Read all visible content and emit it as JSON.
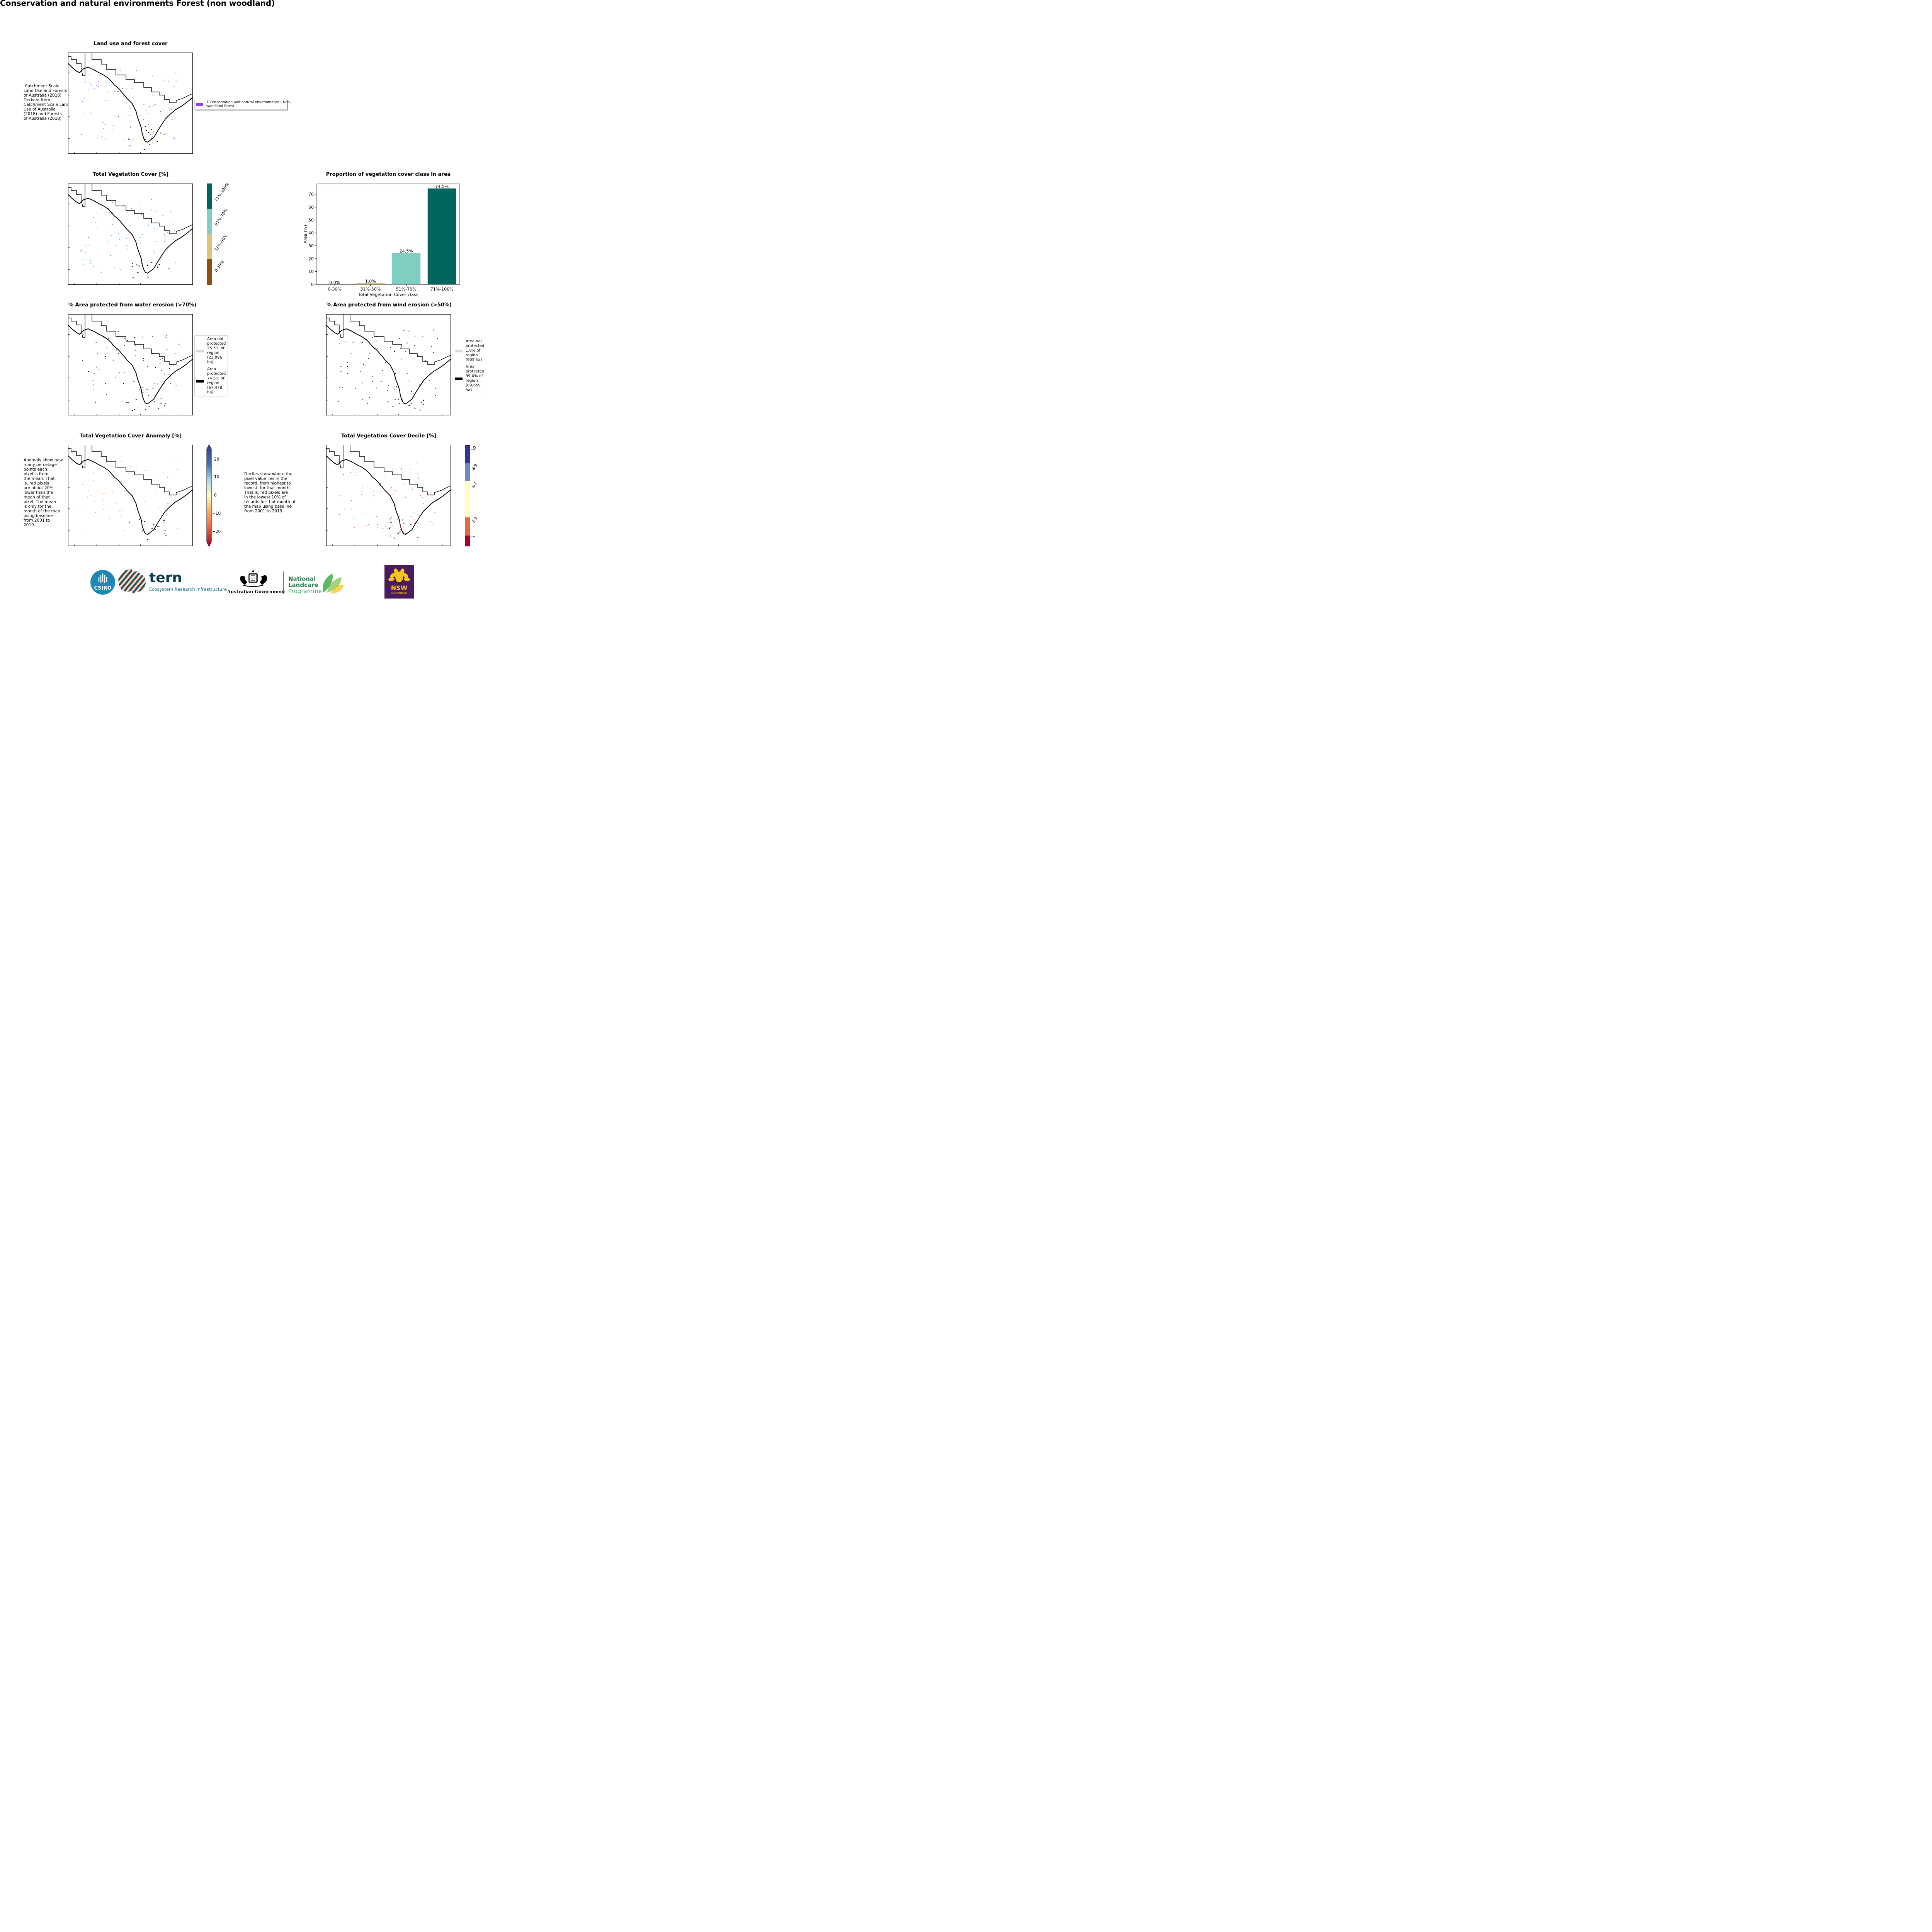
{
  "page": {
    "title": "Conservation and natural environments Forest (non woodland)"
  },
  "panels": {
    "landuse": {
      "title": "Land use and forest cover",
      "note": " Catchment Scale\nLand Use and Forests\nof Australia (2018)\nDerived from\nCatchment Scale Land\nUse of Australia\n(2018) and Forests\nof Australia (2018)",
      "legend_label": "1 Conservation and natural environments – Non-\nwoodland forest",
      "legend_color": "#9b3cf5"
    },
    "tvc": {
      "title": "Total Vegetation Cover [%]",
      "classes": [
        {
          "label": "71%-100%",
          "color": "#01665e"
        },
        {
          "label": "51%-70%",
          "color": "#80cdc1"
        },
        {
          "label": "31%-50%",
          "color": "#dfc27d"
        },
        {
          "label": "0-30%",
          "color": "#8c510a"
        }
      ]
    },
    "water": {
      "title": "% Area protected from water erosion (>70%)",
      "legend": [
        {
          "label": "Area not\nprotected\n25.5% of\nregion\n(23,096\nha)",
          "color": "#d9d9d9"
        },
        {
          "label": "Area\nprotected\n74.5% of\nregion\n(67,478\nha)",
          "color": "#000000"
        }
      ]
    },
    "wind": {
      "title": "% Area protected from wind erosion (>50%)",
      "legend": [
        {
          "label": "Area not\nprotected\n1.0% of\nregion\n(905 ha)",
          "color": "#d9d9d9"
        },
        {
          "label": "Area\nprotected\n99.0% of\nregion\n(89,669\nha)",
          "color": "#000000"
        }
      ]
    },
    "anomaly": {
      "title": "Total Vegetation Cover Anomaly [%]",
      "note": "Anomaly show how\nmany percetage\npoints each\npixel is from\nthe mean. That\nis, red pixels\nare about 20%\nlower than the\nmean of that\npixel. The mean\nis only for the\nmonth of the map\nusing baseline\nfrom 2001 to\n2019.",
      "ticks": [
        "20",
        "10",
        "0",
        "−10",
        "−20"
      ]
    },
    "decile": {
      "title": "Total Vegetation Cover Decile [%]",
      "note": "Deciles show where the\npixel value lies in the\nrecord, from highest to\nlowest, for that month.\nThat is, red pixels are\nin the lowest 10% of\nrecords for that month of\nthe map using baseline\nfrom 2001 to 2019.",
      "classes": [
        {
          "label": "10",
          "color": "#313695"
        },
        {
          "label": "8-9",
          "color": "#6b88c4"
        },
        {
          "label": "4-7",
          "color": "#ffffbf"
        },
        {
          "label": "2-3",
          "color": "#e8673f"
        },
        {
          "label": "1",
          "color": "#a50026"
        }
      ]
    }
  },
  "chart_data": {
    "type": "bar",
    "title": "Proportion of vegetation cover class in area",
    "xlabel": "Total Vegetation Cover class",
    "ylabel": "Area (%)",
    "categories": [
      "0-30%",
      "31%-50%",
      "51%-70%",
      "71%-100%"
    ],
    "values": [
      0.0,
      1.0,
      24.5,
      74.5
    ],
    "value_labels": [
      "0.0%",
      "1.0%",
      "24.5%",
      "74.5%"
    ],
    "colors": [
      "#8c510a",
      "#dfc27d",
      "#80cdc1",
      "#01665e"
    ],
    "ylim": [
      0,
      78
    ],
    "yticks": [
      0,
      10,
      20,
      30,
      40,
      50,
      60,
      70
    ],
    "grid": false
  },
  "logos": {
    "csiro": "CSIRO",
    "tern_word": "tern",
    "tern_sub": "Ecosystem Research Infrastructure",
    "ausgov": "Australian Government",
    "nlp_1": "National",
    "nlp_2": "Landcare",
    "nlp_3": "Programme",
    "nsw_1": "NSW",
    "nsw_2": "GOVERNMENT"
  }
}
